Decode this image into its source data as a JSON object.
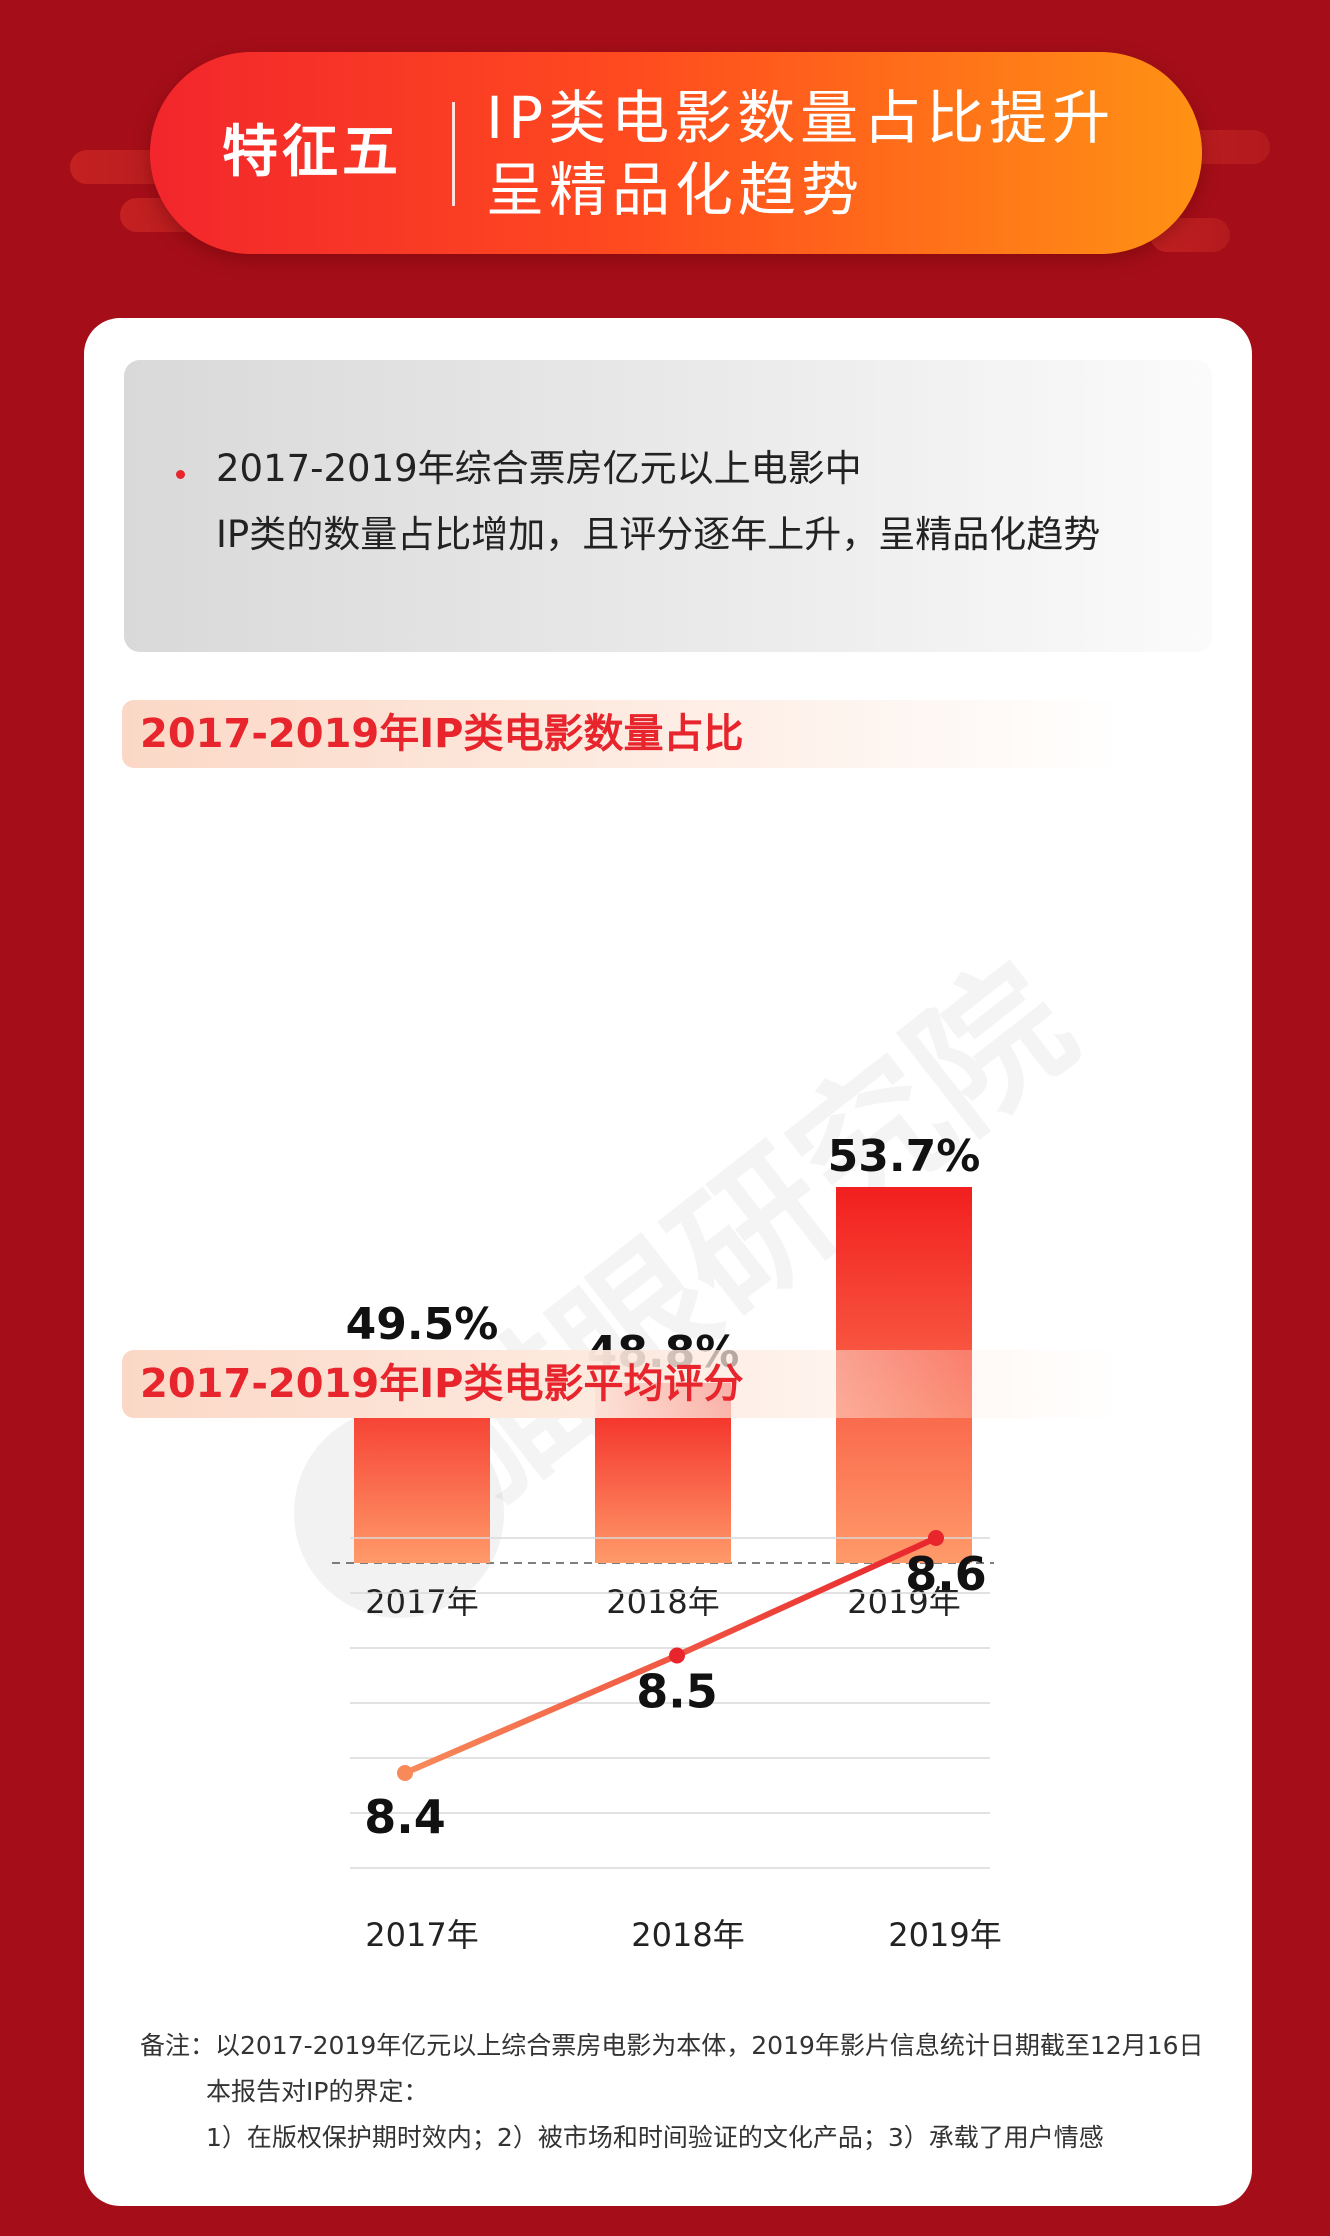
{
  "header": {
    "tag": "特征五",
    "title_lines": [
      "IP类电影数量占比提升",
      "呈精品化趋势"
    ]
  },
  "summary": {
    "lines": [
      "2017-2019年综合票房亿元以上电影中",
      "IP类的数量占比增加，且评分逐年上升，呈精品化趋势"
    ]
  },
  "watermark": "猫眼研究院",
  "chart_data": [
    {
      "type": "bar",
      "title": "2017-2019年IP类电影数量占比",
      "categories": [
        "2017年",
        "2018年",
        "2019年"
      ],
      "values": [
        49.5,
        48.8,
        53.7
      ],
      "value_labels": [
        "49.5%",
        "48.8%",
        "53.7%"
      ],
      "unit": "%",
      "colors": {
        "bar_top": "#f21f1f",
        "bar_bottom": "#ff9a6a"
      }
    },
    {
      "type": "line",
      "title": "2017-2019年IP类电影平均评分",
      "categories": [
        "2017年",
        "2018年",
        "2019年"
      ],
      "values": [
        8.4,
        8.5,
        8.6
      ],
      "value_labels": [
        "8.4",
        "8.5",
        "8.6"
      ],
      "grid": true,
      "colors": {
        "line_start": "#f88a5a",
        "line_end": "#e8242c"
      }
    }
  ],
  "notes": {
    "line1": "备注：以2017-2019年亿元以上综合票房电影为本体，2019年影片信息统计日期截至12月16日",
    "line2": "本报告对IP的界定：",
    "line3": "1）在版权保护期时效内；2）被市场和时间验证的文化产品；3）承载了用户情感"
  }
}
